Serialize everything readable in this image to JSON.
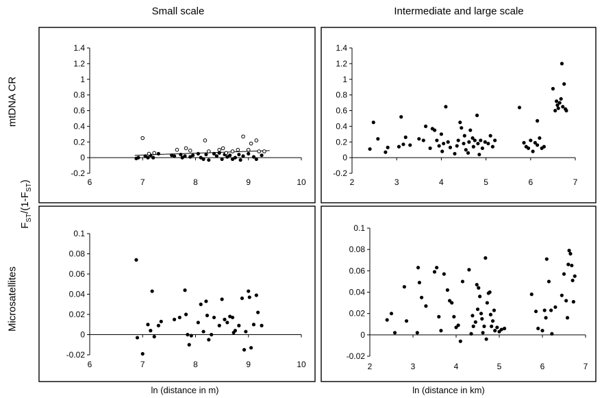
{
  "column_titles": {
    "small": "Small scale",
    "large": "Intermediate and large scale"
  },
  "row_labels": {
    "top": "mtDNA CR",
    "bottom": "Microsatellites"
  },
  "y_axis_label": {
    "main": "F",
    "sub1": "ST",
    "mid": "/(1-F",
    "sub2": "ST",
    "end": ")"
  },
  "x_axis_titles": {
    "small": "ln (distance in m)",
    "large": "ln (distance in km)"
  },
  "chart_data": [
    {
      "id": "mt-small",
      "type": "scatter",
      "xlim": [
        6,
        10
      ],
      "ylim": [
        -0.2,
        1.4
      ],
      "xticks": [
        6,
        7,
        8,
        9,
        10
      ],
      "yticks": [
        -0.2,
        0,
        0.2,
        0.4,
        0.6,
        0.8,
        1,
        1.2,
        1.4
      ],
      "ytick_labels": [
        "-0.2",
        "0",
        "0.2",
        "0.4",
        "0.6",
        "0.8",
        "1",
        "1.2",
        "1.4"
      ],
      "trendline": [
        [
          6.85,
          0.03
        ],
        [
          9.4,
          0.09
        ]
      ],
      "series": [
        {
          "marker": "filled",
          "points": [
            [
              6.88,
              -0.01
            ],
            [
              6.92,
              0.0
            ],
            [
              7.05,
              0.02
            ],
            [
              7.1,
              0.0
            ],
            [
              7.15,
              0.03
            ],
            [
              7.2,
              0.0
            ],
            [
              7.3,
              0.05
            ],
            [
              7.55,
              0.03
            ],
            [
              7.6,
              0.02
            ],
            [
              7.72,
              0.04
            ],
            [
              7.75,
              0.0
            ],
            [
              7.8,
              0.02
            ],
            [
              7.9,
              0.01
            ],
            [
              7.95,
              0.03
            ],
            [
              8.05,
              0.05
            ],
            [
              8.1,
              0.0
            ],
            [
              8.15,
              -0.02
            ],
            [
              8.2,
              0.04
            ],
            [
              8.25,
              -0.03
            ],
            [
              8.35,
              0.05
            ],
            [
              8.4,
              0.02
            ],
            [
              8.45,
              0.06
            ],
            [
              8.5,
              -0.02
            ],
            [
              8.55,
              0.04
            ],
            [
              8.6,
              0.01
            ],
            [
              8.65,
              0.03
            ],
            [
              8.7,
              -0.02
            ],
            [
              8.75,
              0.0
            ],
            [
              8.82,
              0.04
            ],
            [
              8.85,
              -0.03
            ],
            [
              8.9,
              0.02
            ],
            [
              9.0,
              0.05
            ],
            [
              9.1,
              0.01
            ],
            [
              9.15,
              -0.02
            ],
            [
              9.25,
              0.03
            ]
          ]
        },
        {
          "marker": "open",
          "points": [
            [
              7.0,
              0.25
            ],
            [
              7.12,
              0.05
            ],
            [
              7.22,
              0.06
            ],
            [
              7.65,
              0.1
            ],
            [
              7.82,
              0.12
            ],
            [
              7.9,
              0.09
            ],
            [
              8.18,
              0.22
            ],
            [
              8.25,
              0.08
            ],
            [
              8.45,
              0.1
            ],
            [
              8.52,
              0.12
            ],
            [
              8.58,
              0.06
            ],
            [
              8.7,
              0.08
            ],
            [
              8.8,
              0.1
            ],
            [
              8.9,
              0.27
            ],
            [
              9.0,
              0.1
            ],
            [
              9.05,
              0.18
            ],
            [
              9.15,
              0.22
            ],
            [
              9.2,
              0.08
            ],
            [
              9.3,
              0.08
            ]
          ]
        }
      ]
    },
    {
      "id": "mt-large",
      "type": "scatter",
      "xlim": [
        2,
        7
      ],
      "ylim": [
        -0.2,
        1.4
      ],
      "xticks": [
        2,
        3,
        4,
        5,
        6,
        7
      ],
      "yticks": [
        -0.2,
        0,
        0.2,
        0.4,
        0.6,
        0.8,
        1,
        1.2,
        1.4
      ],
      "ytick_labels": [
        "-0.2",
        "0",
        "0.2",
        "0.4",
        "0.6",
        "0.8",
        "1",
        "1.2",
        "1.4"
      ],
      "series": [
        {
          "marker": "filled",
          "points": [
            [
              2.4,
              0.11
            ],
            [
              2.48,
              0.45
            ],
            [
              2.58,
              0.24
            ],
            [
              2.75,
              0.07
            ],
            [
              2.8,
              0.13
            ],
            [
              3.05,
              0.14
            ],
            [
              3.1,
              0.52
            ],
            [
              3.15,
              0.17
            ],
            [
              3.2,
              0.26
            ],
            [
              3.3,
              0.16
            ],
            [
              3.5,
              0.24
            ],
            [
              3.6,
              0.22
            ],
            [
              3.65,
              0.4
            ],
            [
              3.75,
              0.12
            ],
            [
              3.8,
              0.37
            ],
            [
              3.85,
              0.35
            ],
            [
              3.9,
              0.22
            ],
            [
              3.95,
              0.15
            ],
            [
              4.0,
              0.3
            ],
            [
              4.02,
              0.08
            ],
            [
              4.05,
              0.18
            ],
            [
              4.1,
              0.65
            ],
            [
              4.15,
              0.2
            ],
            [
              4.2,
              0.13
            ],
            [
              4.3,
              0.05
            ],
            [
              4.35,
              0.15
            ],
            [
              4.38,
              0.22
            ],
            [
              4.42,
              0.45
            ],
            [
              4.45,
              0.38
            ],
            [
              4.5,
              0.18
            ],
            [
              4.52,
              0.28
            ],
            [
              4.55,
              0.1
            ],
            [
              4.6,
              0.06
            ],
            [
              4.62,
              0.2
            ],
            [
              4.65,
              0.35
            ],
            [
              4.7,
              0.25
            ],
            [
              4.72,
              0.14
            ],
            [
              4.75,
              0.22
            ],
            [
              4.8,
              0.54
            ],
            [
              4.82,
              0.18
            ],
            [
              4.85,
              0.04
            ],
            [
              4.88,
              0.22
            ],
            [
              4.92,
              0.12
            ],
            [
              4.98,
              0.2
            ],
            [
              5.05,
              0.18
            ],
            [
              5.1,
              0.28
            ],
            [
              5.15,
              0.14
            ],
            [
              5.2,
              0.22
            ],
            [
              5.75,
              0.64
            ],
            [
              5.85,
              0.19
            ],
            [
              5.9,
              0.14
            ],
            [
              5.95,
              0.12
            ],
            [
              6.0,
              0.22
            ],
            [
              6.05,
              0.08
            ],
            [
              6.1,
              0.19
            ],
            [
              6.15,
              0.16
            ],
            [
              6.2,
              0.25
            ],
            [
              6.25,
              0.12
            ],
            [
              6.3,
              0.14
            ],
            [
              6.15,
              0.47
            ],
            [
              6.5,
              0.88
            ],
            [
              6.55,
              0.6
            ],
            [
              6.58,
              0.72
            ],
            [
              6.6,
              0.67
            ],
            [
              6.62,
              0.63
            ],
            [
              6.65,
              0.7
            ],
            [
              6.68,
              0.75
            ],
            [
              6.7,
              1.2
            ],
            [
              6.72,
              0.65
            ],
            [
              6.75,
              0.94
            ],
            [
              6.78,
              0.62
            ],
            [
              6.8,
              0.6
            ]
          ]
        }
      ]
    },
    {
      "id": "ms-small",
      "type": "scatter",
      "xlim": [
        6,
        10
      ],
      "ylim": [
        -0.02,
        0.1
      ],
      "xticks": [
        6,
        7,
        8,
        9,
        10
      ],
      "yticks": [
        -0.02,
        0,
        0.02,
        0.04,
        0.06,
        0.08,
        0.1
      ],
      "ytick_labels": [
        "-0.02",
        "0",
        "0.02",
        "0.04",
        "0.06",
        "0.08",
        "0.1"
      ],
      "series": [
        {
          "marker": "filled",
          "points": [
            [
              6.88,
              0.074
            ],
            [
              6.9,
              -0.003
            ],
            [
              7.0,
              -0.019
            ],
            [
              7.1,
              0.01
            ],
            [
              7.15,
              0.004
            ],
            [
              7.18,
              0.043
            ],
            [
              7.22,
              -0.002
            ],
            [
              7.3,
              0.009
            ],
            [
              7.35,
              0.013
            ],
            [
              7.6,
              0.015
            ],
            [
              7.7,
              0.017
            ],
            [
              7.8,
              0.044
            ],
            [
              7.82,
              0.02
            ],
            [
              7.85,
              0.0
            ],
            [
              7.88,
              -0.01
            ],
            [
              7.92,
              -0.001
            ],
            [
              8.05,
              0.012
            ],
            [
              8.1,
              0.03
            ],
            [
              8.15,
              0.003
            ],
            [
              8.2,
              0.033
            ],
            [
              8.22,
              0.019
            ],
            [
              8.25,
              -0.005
            ],
            [
              8.3,
              0.0
            ],
            [
              8.35,
              0.017
            ],
            [
              8.45,
              0.009
            ],
            [
              8.5,
              0.035
            ],
            [
              8.55,
              0.015
            ],
            [
              8.6,
              0.012
            ],
            [
              8.65,
              0.018
            ],
            [
              8.7,
              0.017
            ],
            [
              8.72,
              0.002
            ],
            [
              8.75,
              0.004
            ],
            [
              8.82,
              0.009
            ],
            [
              8.88,
              0.036
            ],
            [
              8.92,
              -0.015
            ],
            [
              8.95,
              0.003
            ],
            [
              9.0,
              0.043
            ],
            [
              9.02,
              0.037
            ],
            [
              9.05,
              -0.013
            ],
            [
              9.1,
              0.01
            ],
            [
              9.15,
              0.039
            ],
            [
              9.18,
              0.022
            ],
            [
              9.25,
              0.009
            ]
          ]
        }
      ]
    },
    {
      "id": "ms-large",
      "type": "scatter",
      "xlim": [
        2,
        7
      ],
      "ylim": [
        -0.02,
        0.1
      ],
      "xticks": [
        2,
        3,
        4,
        5,
        6,
        7
      ],
      "yticks": [
        -0.02,
        0,
        0.02,
        0.04,
        0.06,
        0.08,
        0.1
      ],
      "ytick_labels": [
        "-0.02",
        "0",
        "0.02",
        "0.04",
        "0.06",
        "0.08",
        "0.1"
      ],
      "series": [
        {
          "marker": "filled",
          "points": [
            [
              2.4,
              0.014
            ],
            [
              2.5,
              0.02
            ],
            [
              2.58,
              0.002
            ],
            [
              2.8,
              0.045
            ],
            [
              2.85,
              0.013
            ],
            [
              3.1,
              0.002
            ],
            [
              3.12,
              0.063
            ],
            [
              3.15,
              0.049
            ],
            [
              3.2,
              0.035
            ],
            [
              3.3,
              0.027
            ],
            [
              3.5,
              0.059
            ],
            [
              3.55,
              0.063
            ],
            [
              3.6,
              0.017
            ],
            [
              3.65,
              0.004
            ],
            [
              3.72,
              0.057
            ],
            [
              3.8,
              0.042
            ],
            [
              3.85,
              0.032
            ],
            [
              3.9,
              0.03
            ],
            [
              3.95,
              0.017
            ],
            [
              4.0,
              0.007
            ],
            [
              4.05,
              0.009
            ],
            [
              4.1,
              -0.006
            ],
            [
              4.15,
              0.05
            ],
            [
              4.3,
              0.061
            ],
            [
              4.35,
              0.001
            ],
            [
              4.38,
              0.018
            ],
            [
              4.4,
              0.008
            ],
            [
              4.45,
              0.012
            ],
            [
              4.48,
              0.047
            ],
            [
              4.5,
              0.024
            ],
            [
              4.52,
              0.044
            ],
            [
              4.55,
              0.036
            ],
            [
              4.58,
              0.02
            ],
            [
              4.6,
              0.015
            ],
            [
              4.62,
              0.002
            ],
            [
              4.65,
              0.008
            ],
            [
              4.68,
              0.072
            ],
            [
              4.7,
              -0.004
            ],
            [
              4.72,
              0.03
            ],
            [
              4.75,
              0.039
            ],
            [
              4.78,
              0.04
            ],
            [
              4.8,
              0.019
            ],
            [
              4.82,
              0.008
            ],
            [
              4.85,
              0.013
            ],
            [
              4.88,
              0.023
            ],
            [
              4.9,
              0.004
            ],
            [
              4.95,
              0.007
            ],
            [
              5.0,
              0.003
            ],
            [
              5.05,
              0.005
            ],
            [
              5.12,
              0.006
            ],
            [
              5.75,
              0.038
            ],
            [
              5.85,
              0.022
            ],
            [
              5.9,
              0.006
            ],
            [
              6.0,
              0.004
            ],
            [
              6.05,
              0.023
            ],
            [
              6.08,
              0.016
            ],
            [
              6.1,
              0.071
            ],
            [
              6.15,
              0.05
            ],
            [
              6.2,
              0.023
            ],
            [
              6.22,
              0.001
            ],
            [
              6.3,
              0.026
            ],
            [
              6.45,
              0.037
            ],
            [
              6.55,
              0.032
            ],
            [
              6.58,
              0.016
            ],
            [
              6.6,
              0.066
            ],
            [
              6.62,
              0.079
            ],
            [
              6.65,
              0.076
            ],
            [
              6.68,
              0.065
            ],
            [
              6.7,
              0.051
            ],
            [
              6.72,
              0.031
            ],
            [
              6.75,
              0.055
            ],
            [
              6.5,
              0.057
            ]
          ]
        }
      ]
    }
  ]
}
